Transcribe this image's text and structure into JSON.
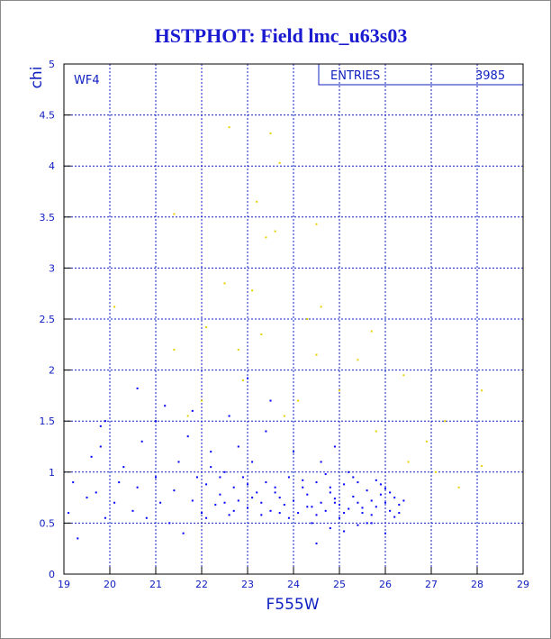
{
  "chart_data": {
    "type": "scatter",
    "title": "HSTPHOT: Field lmc_u63s03",
    "xlabel": "F555W",
    "ylabel": "chi",
    "annotation": "WF4",
    "stats_label": "ENTRIES",
    "stats_value": 3985,
    "xlim": [
      19,
      29
    ],
    "ylim": [
      0,
      5
    ],
    "xticks": [
      19,
      20,
      21,
      22,
      23,
      24,
      25,
      26,
      27,
      28,
      29
    ],
    "yticks": [
      0,
      0.5,
      1,
      1.5,
      2,
      2.5,
      3,
      3.5,
      4,
      4.5,
      5
    ],
    "grid": true,
    "series": [
      {
        "color": "#0000ff",
        "x": [
          19.1,
          19.2,
          19.3,
          19.5,
          19.6,
          19.7,
          19.8,
          19.8,
          19.9,
          20.1,
          20.2,
          20.3,
          20.5,
          20.6,
          20.7,
          20.8,
          21.0,
          21.0,
          21.1,
          21.2,
          21.3,
          21.4,
          21.5,
          21.6,
          21.7,
          21.8,
          21.9,
          22.0,
          22.1,
          22.2,
          22.3,
          22.4,
          22.5,
          22.6,
          22.7,
          22.8,
          22.9,
          23.0,
          23.1,
          23.2,
          23.3,
          23.4,
          23.5,
          23.6,
          23.7,
          23.8,
          23.9,
          24.0,
          24.1,
          24.2,
          24.3,
          24.4,
          24.5,
          24.6,
          24.7,
          24.8,
          24.9,
          25.0,
          25.1,
          25.2,
          25.3,
          25.4,
          25.5,
          25.6,
          25.7,
          25.8,
          25.9,
          26.0,
          26.1,
          26.2,
          26.3,
          26.4,
          22.1,
          22.4,
          22.7,
          23.0,
          23.3,
          23.6,
          23.9,
          24.2,
          24.5,
          24.8,
          25.1,
          25.4,
          25.7,
          26.0,
          26.3,
          22.2,
          22.5,
          22.8,
          23.1,
          23.4,
          23.7,
          24.0,
          24.3,
          24.6,
          24.9,
          25.2,
          25.5,
          25.8,
          26.1,
          24.4,
          24.7,
          25.0,
          25.3,
          25.6,
          25.9,
          26.2,
          24.5,
          24.8,
          25.1,
          25.4,
          25.7,
          26.0,
          23.0,
          23.5,
          22.6,
          20.6,
          21.8,
          24.9,
          19.9
        ],
        "values": [
          0.6,
          0.9,
          0.35,
          0.75,
          1.15,
          0.8,
          1.45,
          1.25,
          0.55,
          0.7,
          0.9,
          1.05,
          0.62,
          0.85,
          1.3,
          0.55,
          0.95,
          1.5,
          0.7,
          1.65,
          0.5,
          0.82,
          1.1,
          0.4,
          1.35,
          0.72,
          0.95,
          0.6,
          0.88,
          1.2,
          0.68,
          0.78,
          1.0,
          0.58,
          0.85,
          0.72,
          0.95,
          0.65,
          1.1,
          0.8,
          0.7,
          0.9,
          0.62,
          0.85,
          0.75,
          0.68,
          0.95,
          0.72,
          0.6,
          0.85,
          0.78,
          0.66,
          0.9,
          0.7,
          0.62,
          0.8,
          0.74,
          0.68,
          0.88,
          0.64,
          0.76,
          0.7,
          0.6,
          0.82,
          0.72,
          0.66,
          0.78,
          0.7,
          0.62,
          0.75,
          0.68,
          0.72,
          0.55,
          0.95,
          0.62,
          0.88,
          0.58,
          0.8,
          0.55,
          0.92,
          0.58,
          0.85,
          0.6,
          0.9,
          0.58,
          0.84,
          0.6,
          1.05,
          0.7,
          1.25,
          0.75,
          1.4,
          0.6,
          1.2,
          0.66,
          1.1,
          0.7,
          1.0,
          0.65,
          0.92,
          0.8,
          0.5,
          0.98,
          0.55,
          0.95,
          0.5,
          0.88,
          0.56,
          0.3,
          0.45,
          0.42,
          0.48,
          0.5,
          0.4,
          1.92,
          1.7,
          1.55,
          1.82,
          1.6,
          1.25,
          1.5
        ]
      },
      {
        "color": "#e8d000",
        "x": [
          22.6,
          23.5,
          23.7,
          23.2,
          21.4,
          24.5,
          23.6,
          23.4,
          22.5,
          23.1,
          24.6,
          22.1,
          25.7,
          20.1,
          21.4,
          22.8,
          24.5,
          25.4,
          26.4,
          28.1,
          27.3,
          26.9,
          27.6,
          28.1,
          25.8,
          24.1,
          23.8,
          22.9,
          21.7,
          26.5,
          27.1,
          25.0,
          24.3,
          23.3,
          22.0
        ],
        "values": [
          4.38,
          4.32,
          4.03,
          3.65,
          3.53,
          3.43,
          3.36,
          3.3,
          2.85,
          2.78,
          2.62,
          2.42,
          2.38,
          2.62,
          2.2,
          2.2,
          2.15,
          2.1,
          1.95,
          1.8,
          1.5,
          1.3,
          0.85,
          1.06,
          1.4,
          1.7,
          1.55,
          1.9,
          1.55,
          1.1,
          1.0,
          1.8,
          2.5,
          2.35,
          1.7
        ]
      }
    ]
  }
}
